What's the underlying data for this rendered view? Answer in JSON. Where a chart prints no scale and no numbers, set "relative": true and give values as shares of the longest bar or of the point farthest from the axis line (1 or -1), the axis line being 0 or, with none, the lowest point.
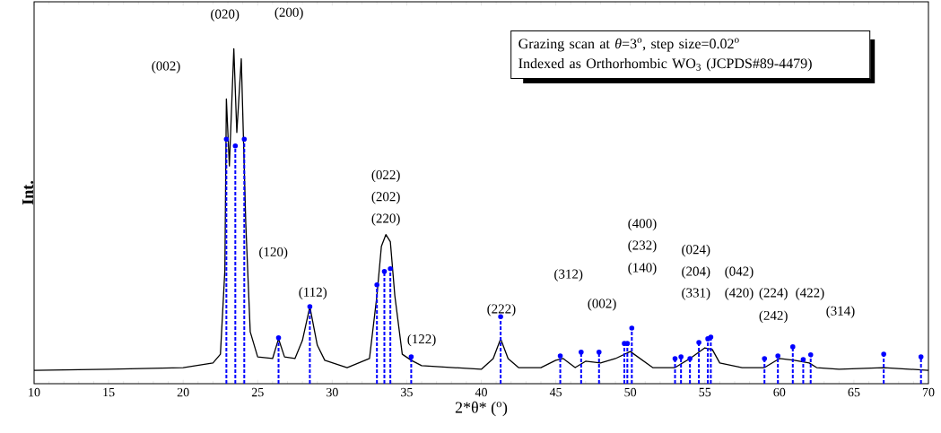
{
  "chart_data": {
    "type": "line",
    "xlabel": "2*θ* ($^{o}$)",
    "ylabel": "Int.",
    "relative": true,
    "xlim": [
      10,
      70
    ],
    "xticks": [
      10,
      15,
      20,
      25,
      30,
      35,
      40,
      45,
      50,
      55,
      60,
      65,
      70
    ],
    "grid": false,
    "series": [
      {
        "color": "#000000",
        "line_style": "solid",
        "marker": "none",
        "x": [
          10,
          15,
          20,
          22,
          22.5,
          22.8,
          22.9,
          23.1,
          23.4,
          23.6,
          23.9,
          24.2,
          24.5,
          25,
          26,
          26.4,
          26.8,
          27.5,
          28,
          28.5,
          29,
          29.5,
          31,
          32.5,
          33,
          33.3,
          33.6,
          33.9,
          34.2,
          34.7,
          35.3,
          36,
          40,
          40.8,
          41.3,
          41.8,
          42.5,
          44,
          45,
          45.5,
          46.3,
          47,
          48,
          49,
          50,
          50.5,
          51.5,
          53,
          54,
          55,
          55.5,
          56,
          57.5,
          59,
          60,
          61,
          62,
          62.5,
          64,
          67,
          70
        ],
        "values": [
          0.04,
          0.043,
          0.048,
          0.062,
          0.088,
          0.34,
          0.85,
          0.65,
          1.0,
          0.75,
          0.97,
          0.48,
          0.155,
          0.08,
          0.075,
          0.134,
          0.08,
          0.075,
          0.129,
          0.23,
          0.115,
          0.07,
          0.048,
          0.075,
          0.263,
          0.41,
          0.445,
          0.424,
          0.263,
          0.088,
          0.07,
          0.054,
          0.043,
          0.075,
          0.134,
          0.075,
          0.048,
          0.048,
          0.07,
          0.075,
          0.048,
          0.067,
          0.062,
          0.075,
          0.096,
          0.08,
          0.048,
          0.048,
          0.075,
          0.107,
          0.102,
          0.062,
          0.048,
          0.048,
          0.075,
          0.07,
          0.062,
          0.048,
          0.043,
          0.048,
          0.04
        ]
      },
      {
        "type": "lollipop",
        "color": "#0000ff",
        "line_style": "dashed",
        "marker": "circle",
        "x": [
          22.9,
          23.5,
          24.1,
          26.4,
          28.5,
          33.0,
          33.5,
          33.9,
          35.3,
          41.3,
          45.3,
          46.7,
          47.9,
          49.6,
          49.8,
          50.1,
          53.0,
          53.4,
          54.0,
          54.6,
          55.2,
          55.4,
          59.0,
          59.9,
          60.9,
          61.6,
          62.1,
          67.0,
          69.5
        ],
        "values": [
          0.73,
          0.71,
          0.73,
          0.137,
          0.23,
          0.295,
          0.335,
          0.343,
          0.08,
          0.2,
          0.083,
          0.094,
          0.094,
          0.12,
          0.12,
          0.166,
          0.075,
          0.08,
          0.075,
          0.123,
          0.134,
          0.139,
          0.075,
          0.083,
          0.11,
          0.072,
          0.086,
          0.088,
          0.08
        ]
      }
    ],
    "annotations": [
      "Grazing scan at *θ*=3$^{o}$, step size=0.02$^{o}$",
      "Indexed as Orthorhombic WO$_{3}$ (JCPDS#89-4479)",
      "(002)",
      "(020)",
      "(200)",
      "(022)",
      "(202)",
      "(220)",
      "(120)",
      "(112)",
      "(122)",
      "(222)",
      "(312)",
      "(002)",
      "(400)",
      "(232)",
      "(140)",
      "(024)",
      "(204)",
      "(042)",
      "(331)",
      "(420)",
      "(224)",
      "(242)",
      "(422)",
      "(314)"
    ]
  }
}
